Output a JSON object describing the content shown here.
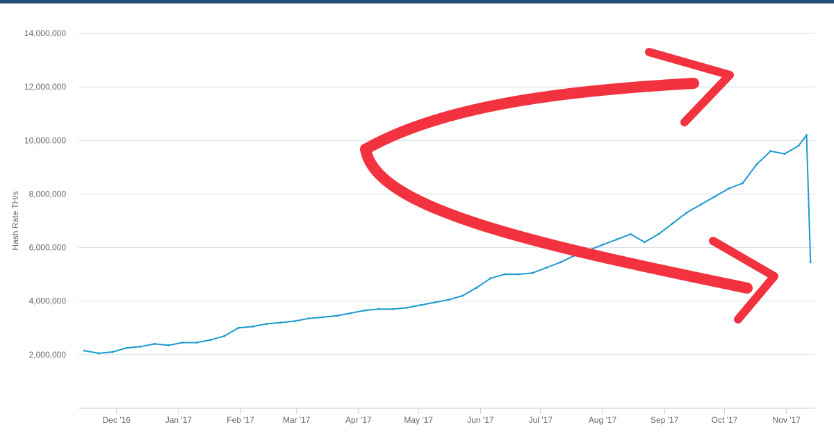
{
  "colors": {
    "top_bar": "#1f4e79",
    "series": "#1a9ad1",
    "grid": "#d8dde3",
    "axis": "#c0d0e0",
    "annotation": "#f2333f"
  },
  "chart_data": {
    "type": "line",
    "title": "",
    "xlabel": "",
    "ylabel": "Hash Rate TH/s",
    "grid": true,
    "ylim": [
      0,
      14000000
    ],
    "yticks": [
      2000000,
      4000000,
      6000000,
      8000000,
      10000000,
      12000000,
      14000000
    ],
    "ytick_labels": [
      "2,000,000",
      "4,000,000",
      "6,000,000",
      "8,000,000",
      "10,000,000",
      "12,000,000",
      "14,000,000"
    ],
    "xlim": [
      "2016-11-12",
      "2017-11-15"
    ],
    "xticks": [
      "2016-12-01",
      "2017-01-01",
      "2017-02-01",
      "2017-03-01",
      "2017-04-01",
      "2017-05-01",
      "2017-06-01",
      "2017-07-01",
      "2017-08-01",
      "2017-09-01",
      "2017-10-01",
      "2017-11-01"
    ],
    "xtick_labels": [
      "Dec '16",
      "Jan '17",
      "Feb '17",
      "Mar '17",
      "Apr '17",
      "May '17",
      "Jun '17",
      "Jul '17",
      "Aug '17",
      "Sep '17",
      "Oct '17",
      "Nov '17"
    ],
    "series": [
      {
        "values": [
          [
            "2016-11-15",
            2150000
          ],
          [
            "2016-11-22",
            2050000
          ],
          [
            "2016-11-29",
            2100000
          ],
          [
            "2016-12-06",
            2250000
          ],
          [
            "2016-12-13",
            2300000
          ],
          [
            "2016-12-20",
            2400000
          ],
          [
            "2016-12-27",
            2350000
          ],
          [
            "2017-01-03",
            2450000
          ],
          [
            "2017-01-10",
            2450000
          ],
          [
            "2017-01-17",
            2550000
          ],
          [
            "2017-01-24",
            2700000
          ],
          [
            "2017-01-31",
            3000000
          ],
          [
            "2017-02-07",
            3050000
          ],
          [
            "2017-02-14",
            3150000
          ],
          [
            "2017-02-21",
            3200000
          ],
          [
            "2017-02-28",
            3250000
          ],
          [
            "2017-03-07",
            3350000
          ],
          [
            "2017-03-14",
            3400000
          ],
          [
            "2017-03-21",
            3450000
          ],
          [
            "2017-03-28",
            3550000
          ],
          [
            "2017-04-04",
            3650000
          ],
          [
            "2017-04-11",
            3700000
          ],
          [
            "2017-04-18",
            3700000
          ],
          [
            "2017-04-25",
            3750000
          ],
          [
            "2017-05-02",
            3850000
          ],
          [
            "2017-05-09",
            3950000
          ],
          [
            "2017-05-16",
            4050000
          ],
          [
            "2017-05-23",
            4200000
          ],
          [
            "2017-05-30",
            4500000
          ],
          [
            "2017-06-06",
            4850000
          ],
          [
            "2017-06-13",
            5000000
          ],
          [
            "2017-06-20",
            5000000
          ],
          [
            "2017-06-27",
            5050000
          ],
          [
            "2017-07-04",
            5250000
          ],
          [
            "2017-07-11",
            5450000
          ],
          [
            "2017-07-18",
            5700000
          ],
          [
            "2017-07-25",
            5900000
          ],
          [
            "2017-08-01",
            6100000
          ],
          [
            "2017-08-08",
            6300000
          ],
          [
            "2017-08-15",
            6500000
          ],
          [
            "2017-08-22",
            6200000
          ],
          [
            "2017-08-29",
            6500000
          ],
          [
            "2017-09-05",
            6900000
          ],
          [
            "2017-09-12",
            7300000
          ],
          [
            "2017-09-19",
            7600000
          ],
          [
            "2017-09-26",
            7900000
          ],
          [
            "2017-10-03",
            8200000
          ],
          [
            "2017-10-10",
            8400000
          ],
          [
            "2017-10-17",
            9100000
          ],
          [
            "2017-10-24",
            9600000
          ],
          [
            "2017-10-31",
            9500000
          ],
          [
            "2017-11-07",
            9800000
          ],
          [
            "2017-11-11",
            10200000
          ],
          [
            "2017-11-13",
            5450000
          ]
        ]
      }
    ]
  }
}
